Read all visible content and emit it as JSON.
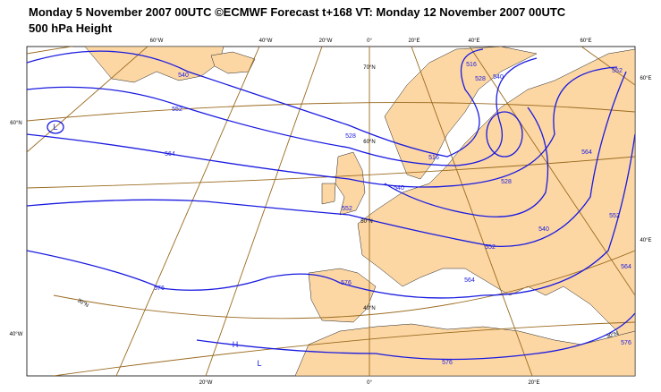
{
  "header": {
    "title": "Monday 5 November 2007 00UTC ©ECMWF Forecast t+168 VT: Monday 12 November 2007 00UTC",
    "subtitle": "500 hPa Height"
  },
  "graticule_labels": [
    "60°W",
    "40°W",
    "20°W",
    "0°",
    "20°E",
    "40°E",
    "60°E",
    "60°N",
    "40°W",
    "60°E",
    "40°E",
    "20°W",
    "0°",
    "20°E",
    "70°N",
    "60°N",
    "50°N",
    "40°N",
    "30°N",
    "30°N"
  ],
  "contour_labels": [
    540,
    552,
    564,
    576,
    528,
    516,
    540,
    552,
    576,
    528,
    540,
    552,
    564,
    576,
    552,
    564,
    576,
    516,
    528,
    540,
    552,
    564
  ],
  "centers": [
    "L",
    "H",
    "L"
  ]
}
